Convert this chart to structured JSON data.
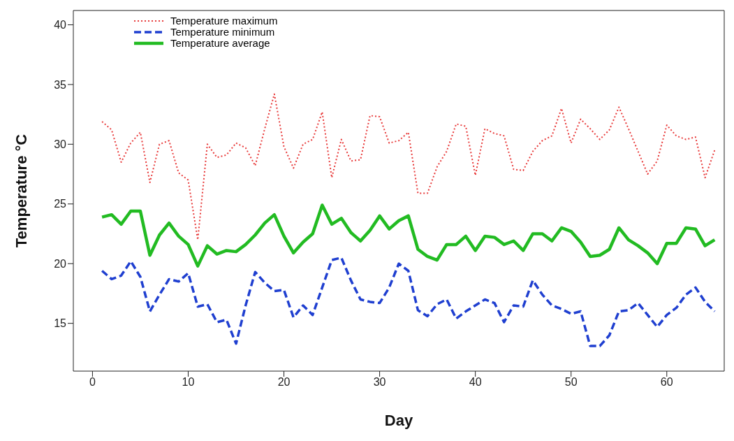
{
  "chart_data": {
    "type": "line",
    "xlabel": "Day",
    "ylabel": "Temperature °C",
    "xlim": [
      -2,
      66
    ],
    "xticks": [
      0,
      10,
      20,
      30,
      40,
      50,
      60
    ],
    "ylim": [
      11,
      41.2
    ],
    "yticks": [
      15,
      20,
      25,
      30,
      35,
      40
    ],
    "grid": false,
    "legend": "top left",
    "marker": "none",
    "x": [
      1,
      2,
      3,
      4,
      5,
      6,
      7,
      8,
      9,
      10,
      11,
      12,
      13,
      14,
      15,
      16,
      17,
      18,
      19,
      20,
      21,
      22,
      23,
      24,
      25,
      26,
      27,
      28,
      29,
      30,
      31,
      32,
      33,
      34,
      35,
      36,
      37,
      38,
      39,
      40,
      41,
      42,
      43,
      44,
      45,
      46,
      47,
      48,
      49,
      50,
      51,
      52,
      53,
      54,
      55,
      56,
      57,
      58,
      59,
      60,
      61,
      62,
      63,
      64,
      65
    ],
    "series": [
      {
        "name": "Temperature maximum",
        "color": "#e83a3a",
        "line_style": "dotted",
        "values": [
          31.9,
          31.2,
          28.5,
          30.1,
          31.0,
          26.8,
          30.0,
          30.3,
          27.6,
          27.0,
          22.0,
          30.0,
          28.9,
          29.1,
          30.1,
          29.7,
          28.2,
          31.3,
          34.2,
          29.8,
          28.0,
          30.0,
          30.4,
          32.7,
          27.2,
          30.4,
          28.6,
          28.7,
          32.4,
          32.3,
          30.1,
          30.3,
          31.0,
          25.9,
          25.9,
          28.1,
          29.4,
          31.7,
          31.5,
          27.4,
          31.3,
          30.9,
          30.7,
          27.9,
          27.8,
          29.4,
          30.3,
          30.7,
          33.0,
          30.1,
          32.1,
          31.3,
          30.4,
          31.2,
          33.1,
          31.3,
          29.4,
          27.5,
          28.6,
          31.6,
          30.7,
          30.4,
          30.6,
          27.2,
          29.5
        ]
      },
      {
        "name": "Temperature minimum",
        "color": "#1f3fd0",
        "line_style": "dashed",
        "values": [
          19.4,
          18.7,
          19.0,
          20.2,
          18.9,
          16.0,
          17.4,
          18.7,
          18.5,
          19.2,
          16.4,
          16.6,
          15.1,
          15.3,
          13.3,
          16.5,
          19.3,
          18.4,
          17.7,
          17.8,
          15.5,
          16.5,
          15.7,
          18.0,
          20.3,
          20.5,
          18.6,
          17.0,
          16.8,
          16.7,
          18.0,
          20.0,
          19.4,
          16.1,
          15.6,
          16.6,
          17.0,
          15.4,
          16.0,
          16.5,
          17.0,
          16.7,
          15.1,
          16.5,
          16.4,
          18.6,
          17.4,
          16.5,
          16.2,
          15.8,
          16.0,
          13.1,
          13.1,
          14.0,
          16.0,
          16.1,
          16.7,
          15.7,
          14.7,
          15.7,
          16.3,
          17.4,
          18.0,
          16.8,
          16.0
        ]
      },
      {
        "name": "Temperature average",
        "color": "#22bb22",
        "line_style": "solid",
        "values": [
          23.9,
          24.1,
          23.3,
          24.4,
          24.4,
          20.7,
          22.4,
          23.4,
          22.3,
          21.6,
          19.8,
          21.5,
          20.8,
          21.1,
          21.0,
          21.6,
          22.4,
          23.4,
          24.1,
          22.3,
          20.9,
          21.8,
          22.5,
          24.9,
          23.3,
          23.8,
          22.6,
          21.9,
          22.8,
          24.0,
          22.9,
          23.6,
          24.0,
          21.2,
          20.6,
          20.3,
          21.6,
          21.6,
          22.3,
          21.1,
          22.3,
          22.2,
          21.6,
          21.9,
          21.1,
          22.5,
          22.5,
          21.9,
          23.0,
          22.7,
          21.8,
          20.6,
          20.7,
          21.2,
          23.0,
          22.0,
          21.5,
          20.9,
          20.0,
          21.7,
          21.7,
          23.0,
          22.9,
          21.5,
          22.0
        ]
      }
    ]
  }
}
